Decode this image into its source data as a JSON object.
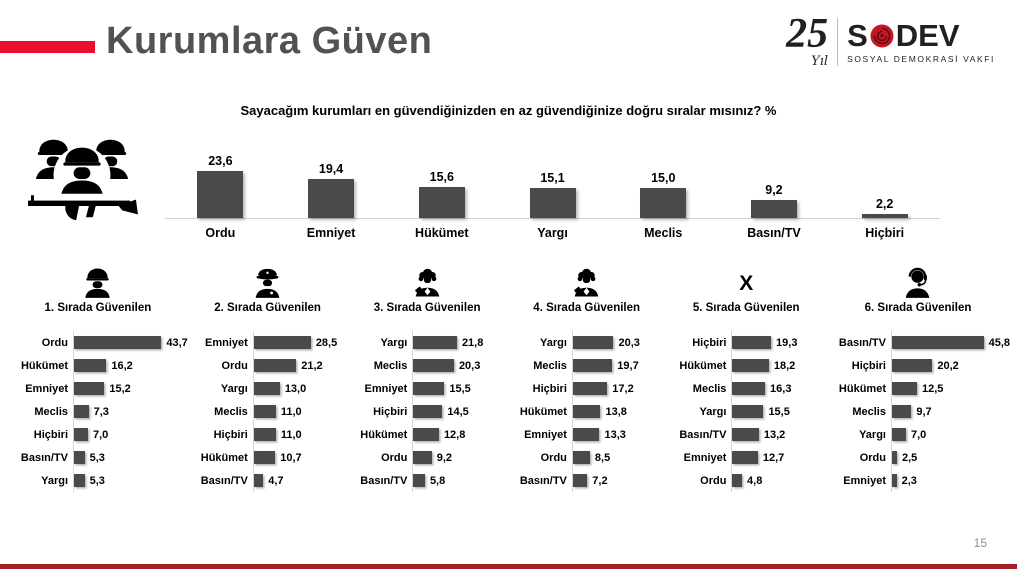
{
  "slide": {
    "title": "Kurumlara Güven",
    "question": "Sayacağım kurumları en güvendiğinizden en az güvendiğinize doğru sıralar mısınız?  %",
    "page_number": "15"
  },
  "logo": {
    "years": "25",
    "years_label": "Yıl",
    "org_first": "S",
    "org_rest": "DEV",
    "org_sub": "SOSYAL DEMOKRASİ VAKFI"
  },
  "icons": {
    "x_glyph": "X",
    "top_left": "soldiers-with-rifle",
    "panel_icons": [
      "soldier",
      "police-officer",
      "judge-gavel",
      "judge-gavel",
      "x-mark",
      "headset-person"
    ]
  },
  "colors": {
    "accent_red": "#e8112d",
    "bar_gray": "#4a4a4c",
    "footer_red": "#a02126",
    "title_gray": "#515254",
    "rose_red": "#c41724"
  },
  "chart_data": [
    {
      "type": "bar",
      "orientation": "vertical",
      "title": "Sayacağım kurumları en güvendiğinizden en az güvendiğinize doğru sıralar mısınız? %",
      "categories": [
        "Ordu",
        "Emniyet",
        "Hükümet",
        "Yargı",
        "Meclis",
        "Basın/TV",
        "Hiçbiri"
      ],
      "values": [
        23.6,
        19.4,
        15.6,
        15.1,
        15.0,
        9.2,
        2.2
      ],
      "value_labels": [
        "23,6",
        "19,4",
        "15,6",
        "15,1",
        "15,0",
        "9,2",
        "2,2"
      ],
      "ylim": [
        0,
        25
      ],
      "grid": false,
      "legend": false
    },
    {
      "type": "bar",
      "orientation": "horizontal",
      "title": "1. Sırada Güvenilen",
      "icon": "soldier",
      "categories": [
        "Ordu",
        "Hükümet",
        "Emniyet",
        "Meclis",
        "Hiçbiri",
        "Basın/TV",
        "Yargı"
      ],
      "values": [
        43.7,
        16.2,
        15.2,
        7.3,
        7.0,
        5.3,
        5.3
      ],
      "value_labels": [
        "43,7",
        "16,2",
        "15,2",
        "7,3",
        "7,0",
        "5,3",
        "5,3"
      ],
      "xlim": [
        0,
        50
      ]
    },
    {
      "type": "bar",
      "orientation": "horizontal",
      "title": "2. Sırada Güvenilen",
      "icon": "police-officer",
      "categories": [
        "Emniyet",
        "Ordu",
        "Yargı",
        "Meclis",
        "Hiçbiri",
        "Hükümet",
        "Basın/TV"
      ],
      "values": [
        28.5,
        21.2,
        13.0,
        11.0,
        11.0,
        10.7,
        4.7
      ],
      "value_labels": [
        "28,5",
        "21,2",
        "13,0",
        "11,0",
        "11,0",
        "10,7",
        "4,7"
      ],
      "xlim": [
        0,
        50
      ]
    },
    {
      "type": "bar",
      "orientation": "horizontal",
      "title": "3. Sırada Güvenilen",
      "icon": "judge-gavel",
      "categories": [
        "Yargı",
        "Meclis",
        "Emniyet",
        "Hiçbiri",
        "Hükümet",
        "Ordu",
        "Basın/TV"
      ],
      "values": [
        21.8,
        20.3,
        15.5,
        14.5,
        12.8,
        9.2,
        5.8
      ],
      "value_labels": [
        "21,8",
        "20,3",
        "15,5",
        "14,5",
        "12,8",
        "9,2",
        "5,8"
      ],
      "xlim": [
        0,
        50
      ]
    },
    {
      "type": "bar",
      "orientation": "horizontal",
      "title": "4. Sırada Güvenilen",
      "icon": "judge-gavel",
      "categories": [
        "Yargı",
        "Meclis",
        "Hiçbiri",
        "Hükümet",
        "Emniyet",
        "Ordu",
        "Basın/TV"
      ],
      "values": [
        20.3,
        19.7,
        17.2,
        13.8,
        13.3,
        8.5,
        7.2
      ],
      "value_labels": [
        "20,3",
        "19,7",
        "17,2",
        "13,8",
        "13,3",
        "8,5",
        "7,2"
      ],
      "xlim": [
        0,
        50
      ]
    },
    {
      "type": "bar",
      "orientation": "horizontal",
      "title": "5. Sırada Güvenilen",
      "icon": "x-mark",
      "categories": [
        "Hiçbiri",
        "Hükümet",
        "Meclis",
        "Yargı",
        "Basın/TV",
        "Emniyet",
        "Ordu"
      ],
      "values": [
        19.3,
        18.2,
        16.3,
        15.5,
        13.2,
        12.7,
        4.8
      ],
      "value_labels": [
        "19,3",
        "18,2",
        "16,3",
        "15,5",
        "13,2",
        "12,7",
        "4,8"
      ],
      "xlim": [
        0,
        50
      ]
    },
    {
      "type": "bar",
      "orientation": "horizontal",
      "title": "6. Sırada Güvenilen",
      "icon": "headset-person",
      "categories": [
        "Basın/TV",
        "Hiçbiri",
        "Hükümet",
        "Meclis",
        "Yargı",
        "Ordu",
        "Emniyet"
      ],
      "values": [
        45.8,
        20.2,
        12.5,
        9.7,
        7.0,
        2.5,
        2.3
      ],
      "value_labels": [
        "45,8",
        "20,2",
        "12,5",
        "9,7",
        "7,0",
        "2,5",
        "2,3"
      ],
      "xlim": [
        0,
        50
      ]
    }
  ]
}
